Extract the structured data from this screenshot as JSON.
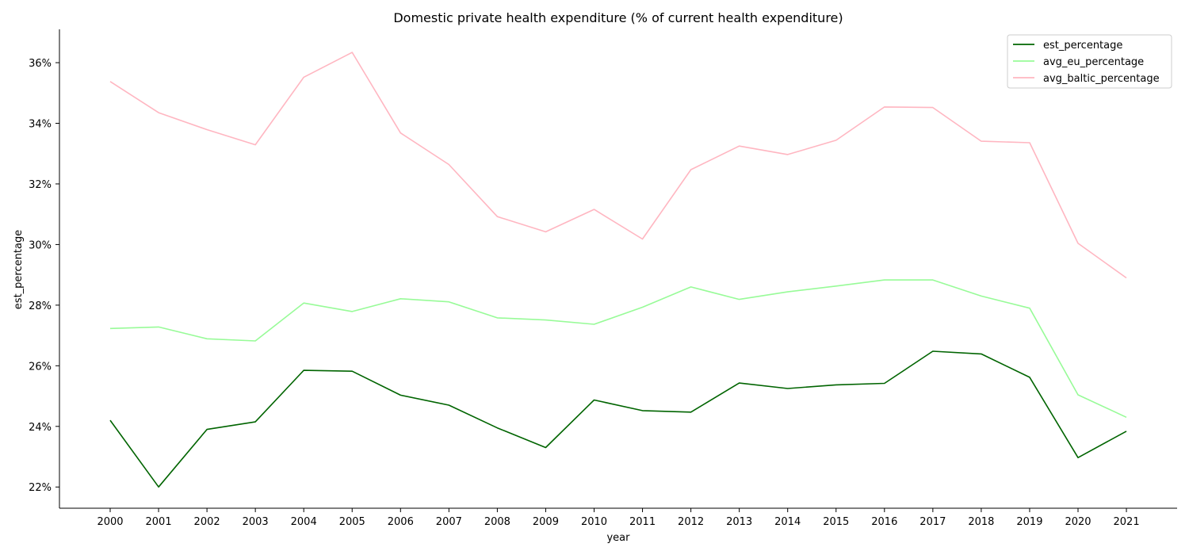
{
  "chart_data": {
    "type": "line",
    "title": "Domestic private health expenditure (% of current health expenditure)",
    "xlabel": "year",
    "ylabel": "est_percentage",
    "ylim": [
      21.3,
      37.1
    ],
    "y_ticks": [
      22,
      24,
      26,
      28,
      30,
      32,
      34,
      36
    ],
    "y_tick_format": "{v}%",
    "grid": false,
    "legend_position": "upper right",
    "categories": [
      "2000",
      "2001",
      "2002",
      "2003",
      "2004",
      "2005",
      "2006",
      "2007",
      "2008",
      "2009",
      "2010",
      "2011",
      "2012",
      "2013",
      "2014",
      "2015",
      "2016",
      "2017",
      "2018",
      "2019",
      "2020",
      "2021"
    ],
    "series": [
      {
        "name": "est_percentage",
        "color": "#006400",
        "values": [
          24.2,
          22.0,
          23.9,
          24.15,
          25.85,
          25.82,
          25.03,
          24.7,
          23.95,
          23.3,
          24.87,
          24.52,
          24.47,
          25.43,
          25.25,
          25.37,
          25.42,
          26.48,
          26.39,
          25.62,
          22.97,
          23.84
        ]
      },
      {
        "name": "avg_eu_percentage",
        "color": "#98fb98",
        "values": [
          27.23,
          27.28,
          26.89,
          26.82,
          28.07,
          27.79,
          28.21,
          28.11,
          27.58,
          27.51,
          27.37,
          27.93,
          28.6,
          28.19,
          28.44,
          28.63,
          28.83,
          28.83,
          28.3,
          27.9,
          25.04,
          24.3
        ]
      },
      {
        "name": "avg_baltic_percentage",
        "color": "#ffb6c1",
        "values": [
          35.38,
          34.35,
          33.79,
          33.29,
          35.52,
          36.34,
          33.68,
          32.64,
          30.92,
          30.42,
          31.16,
          30.18,
          32.47,
          33.25,
          32.97,
          33.44,
          34.54,
          34.52,
          33.41,
          33.36,
          30.04,
          28.9
        ]
      }
    ]
  }
}
